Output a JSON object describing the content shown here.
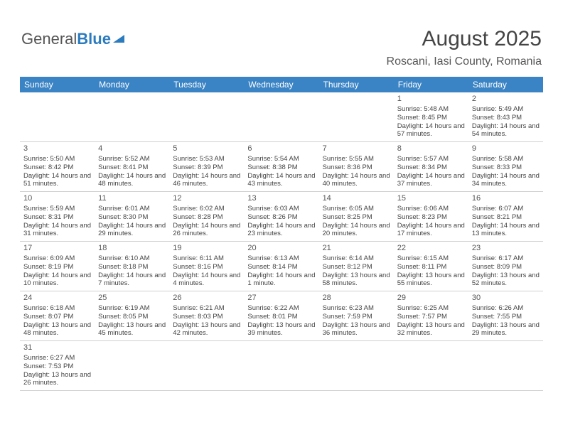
{
  "logo": {
    "part1": "General",
    "part2": "Blue"
  },
  "title": "August 2025",
  "subtitle": "Roscani, Iasi County, Romania",
  "colors": {
    "headerBg": "#3a83c4",
    "headerFg": "#ffffff",
    "brandBlue": "#2b7bbf",
    "text": "#444444",
    "border": "#d0d0d0"
  },
  "dayHeaders": [
    "Sunday",
    "Monday",
    "Tuesday",
    "Wednesday",
    "Thursday",
    "Friday",
    "Saturday"
  ],
  "weeks": [
    [
      {
        "blank": true
      },
      {
        "blank": true
      },
      {
        "blank": true
      },
      {
        "blank": true
      },
      {
        "blank": true
      },
      {
        "day": "1",
        "sunrise": "Sunrise: 5:48 AM",
        "sunset": "Sunset: 8:45 PM",
        "daylight": "Daylight: 14 hours and 57 minutes."
      },
      {
        "day": "2",
        "sunrise": "Sunrise: 5:49 AM",
        "sunset": "Sunset: 8:43 PM",
        "daylight": "Daylight: 14 hours and 54 minutes."
      }
    ],
    [
      {
        "day": "3",
        "sunrise": "Sunrise: 5:50 AM",
        "sunset": "Sunset: 8:42 PM",
        "daylight": "Daylight: 14 hours and 51 minutes."
      },
      {
        "day": "4",
        "sunrise": "Sunrise: 5:52 AM",
        "sunset": "Sunset: 8:41 PM",
        "daylight": "Daylight: 14 hours and 48 minutes."
      },
      {
        "day": "5",
        "sunrise": "Sunrise: 5:53 AM",
        "sunset": "Sunset: 8:39 PM",
        "daylight": "Daylight: 14 hours and 46 minutes."
      },
      {
        "day": "6",
        "sunrise": "Sunrise: 5:54 AM",
        "sunset": "Sunset: 8:38 PM",
        "daylight": "Daylight: 14 hours and 43 minutes."
      },
      {
        "day": "7",
        "sunrise": "Sunrise: 5:55 AM",
        "sunset": "Sunset: 8:36 PM",
        "daylight": "Daylight: 14 hours and 40 minutes."
      },
      {
        "day": "8",
        "sunrise": "Sunrise: 5:57 AM",
        "sunset": "Sunset: 8:34 PM",
        "daylight": "Daylight: 14 hours and 37 minutes."
      },
      {
        "day": "9",
        "sunrise": "Sunrise: 5:58 AM",
        "sunset": "Sunset: 8:33 PM",
        "daylight": "Daylight: 14 hours and 34 minutes."
      }
    ],
    [
      {
        "day": "10",
        "sunrise": "Sunrise: 5:59 AM",
        "sunset": "Sunset: 8:31 PM",
        "daylight": "Daylight: 14 hours and 31 minutes."
      },
      {
        "day": "11",
        "sunrise": "Sunrise: 6:01 AM",
        "sunset": "Sunset: 8:30 PM",
        "daylight": "Daylight: 14 hours and 29 minutes."
      },
      {
        "day": "12",
        "sunrise": "Sunrise: 6:02 AM",
        "sunset": "Sunset: 8:28 PM",
        "daylight": "Daylight: 14 hours and 26 minutes."
      },
      {
        "day": "13",
        "sunrise": "Sunrise: 6:03 AM",
        "sunset": "Sunset: 8:26 PM",
        "daylight": "Daylight: 14 hours and 23 minutes."
      },
      {
        "day": "14",
        "sunrise": "Sunrise: 6:05 AM",
        "sunset": "Sunset: 8:25 PM",
        "daylight": "Daylight: 14 hours and 20 minutes."
      },
      {
        "day": "15",
        "sunrise": "Sunrise: 6:06 AM",
        "sunset": "Sunset: 8:23 PM",
        "daylight": "Daylight: 14 hours and 17 minutes."
      },
      {
        "day": "16",
        "sunrise": "Sunrise: 6:07 AM",
        "sunset": "Sunset: 8:21 PM",
        "daylight": "Daylight: 14 hours and 13 minutes."
      }
    ],
    [
      {
        "day": "17",
        "sunrise": "Sunrise: 6:09 AM",
        "sunset": "Sunset: 8:19 PM",
        "daylight": "Daylight: 14 hours and 10 minutes."
      },
      {
        "day": "18",
        "sunrise": "Sunrise: 6:10 AM",
        "sunset": "Sunset: 8:18 PM",
        "daylight": "Daylight: 14 hours and 7 minutes."
      },
      {
        "day": "19",
        "sunrise": "Sunrise: 6:11 AM",
        "sunset": "Sunset: 8:16 PM",
        "daylight": "Daylight: 14 hours and 4 minutes."
      },
      {
        "day": "20",
        "sunrise": "Sunrise: 6:13 AM",
        "sunset": "Sunset: 8:14 PM",
        "daylight": "Daylight: 14 hours and 1 minute."
      },
      {
        "day": "21",
        "sunrise": "Sunrise: 6:14 AM",
        "sunset": "Sunset: 8:12 PM",
        "daylight": "Daylight: 13 hours and 58 minutes."
      },
      {
        "day": "22",
        "sunrise": "Sunrise: 6:15 AM",
        "sunset": "Sunset: 8:11 PM",
        "daylight": "Daylight: 13 hours and 55 minutes."
      },
      {
        "day": "23",
        "sunrise": "Sunrise: 6:17 AM",
        "sunset": "Sunset: 8:09 PM",
        "daylight": "Daylight: 13 hours and 52 minutes."
      }
    ],
    [
      {
        "day": "24",
        "sunrise": "Sunrise: 6:18 AM",
        "sunset": "Sunset: 8:07 PM",
        "daylight": "Daylight: 13 hours and 48 minutes."
      },
      {
        "day": "25",
        "sunrise": "Sunrise: 6:19 AM",
        "sunset": "Sunset: 8:05 PM",
        "daylight": "Daylight: 13 hours and 45 minutes."
      },
      {
        "day": "26",
        "sunrise": "Sunrise: 6:21 AM",
        "sunset": "Sunset: 8:03 PM",
        "daylight": "Daylight: 13 hours and 42 minutes."
      },
      {
        "day": "27",
        "sunrise": "Sunrise: 6:22 AM",
        "sunset": "Sunset: 8:01 PM",
        "daylight": "Daylight: 13 hours and 39 minutes."
      },
      {
        "day": "28",
        "sunrise": "Sunrise: 6:23 AM",
        "sunset": "Sunset: 7:59 PM",
        "daylight": "Daylight: 13 hours and 36 minutes."
      },
      {
        "day": "29",
        "sunrise": "Sunrise: 6:25 AM",
        "sunset": "Sunset: 7:57 PM",
        "daylight": "Daylight: 13 hours and 32 minutes."
      },
      {
        "day": "30",
        "sunrise": "Sunrise: 6:26 AM",
        "sunset": "Sunset: 7:55 PM",
        "daylight": "Daylight: 13 hours and 29 minutes."
      }
    ],
    [
      {
        "day": "31",
        "sunrise": "Sunrise: 6:27 AM",
        "sunset": "Sunset: 7:53 PM",
        "daylight": "Daylight: 13 hours and 26 minutes."
      },
      {
        "blank": true
      },
      {
        "blank": true
      },
      {
        "blank": true
      },
      {
        "blank": true
      },
      {
        "blank": true
      },
      {
        "blank": true
      }
    ]
  ]
}
